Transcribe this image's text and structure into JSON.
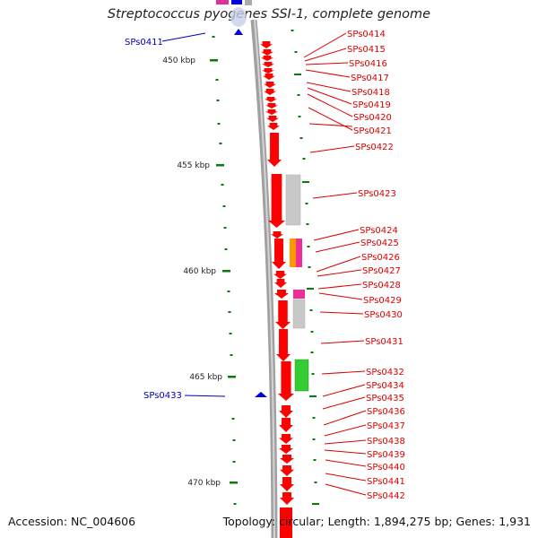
{
  "title": "Streptococcus pyogenes SSI-1, complete genome",
  "accession": "Accession: NC_004606",
  "stats": "Topology: circular; Length: 1,894,275 bp; Genes: 1,931",
  "colors": {
    "forward_gene": "#ff0000",
    "reverse_marker": "#0000dd",
    "tick": "#0a7a0a",
    "backbone": "#909090",
    "label_forward": "#dd0000",
    "label_reverse": "#0000bb"
  },
  "scale_labels": [
    "450 kbp",
    "455 kbp",
    "460 kbp",
    "465 kbp",
    "470 kbp"
  ],
  "forward_gene_labels": [
    "SPs0414",
    "SPs0415",
    "SPs0416",
    "SPs0417",
    "SPs0418",
    "SPs0419",
    "SPs0420",
    "SPs0421",
    "SPs0422",
    "SPs0423",
    "SPs0424",
    "SPs0425",
    "SPs0426",
    "SPs0427",
    "SPs0428",
    "SPs0429",
    "SPs0430",
    "SPs0431",
    "SPs0432",
    "SPs0434",
    "SPs0435",
    "SPs0436",
    "SPs0437",
    "SPs0438",
    "SPs0439",
    "SPs0440",
    "SPs0441",
    "SPs0442"
  ],
  "reverse_gene_labels": [
    "SPs0411",
    "SPs0433"
  ]
}
